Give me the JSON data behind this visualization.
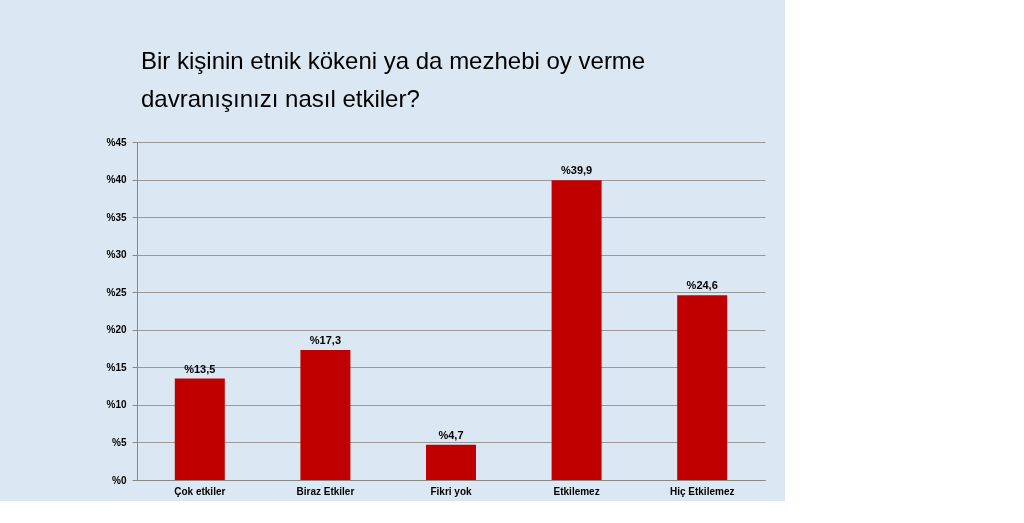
{
  "chart_data": {
    "type": "bar",
    "title": "Bir kişinin etnik kökeni ya da mezhebi oy verme davranışınızı nasıl etkiler?",
    "categories": [
      "Çok etkiler",
      "Biraz Etkiler",
      "Fikri yok",
      "Etkilemez",
      "Hiç Etkilemez"
    ],
    "values": [
      13.5,
      17.3,
      4.7,
      39.9,
      24.6
    ],
    "value_labels": [
      "%13,5",
      "%17,3",
      "%4,7",
      "%39,9",
      "%24,6"
    ],
    "color": "#c00000",
    "ylim": [
      0,
      45
    ],
    "yticks": [
      {
        "value": 0,
        "label": "%0"
      },
      {
        "value": 5,
        "label": "%5"
      },
      {
        "value": 10,
        "label": "%10"
      },
      {
        "value": 15,
        "label": "%15"
      },
      {
        "value": 20,
        "label": "%20"
      },
      {
        "value": 25,
        "label": "%25"
      },
      {
        "value": 30,
        "label": "%30"
      },
      {
        "value": 35,
        "label": "%35"
      },
      {
        "value": 40,
        "label": "%40"
      },
      {
        "value": 45,
        "label": "%45"
      }
    ],
    "grid": "y"
  }
}
